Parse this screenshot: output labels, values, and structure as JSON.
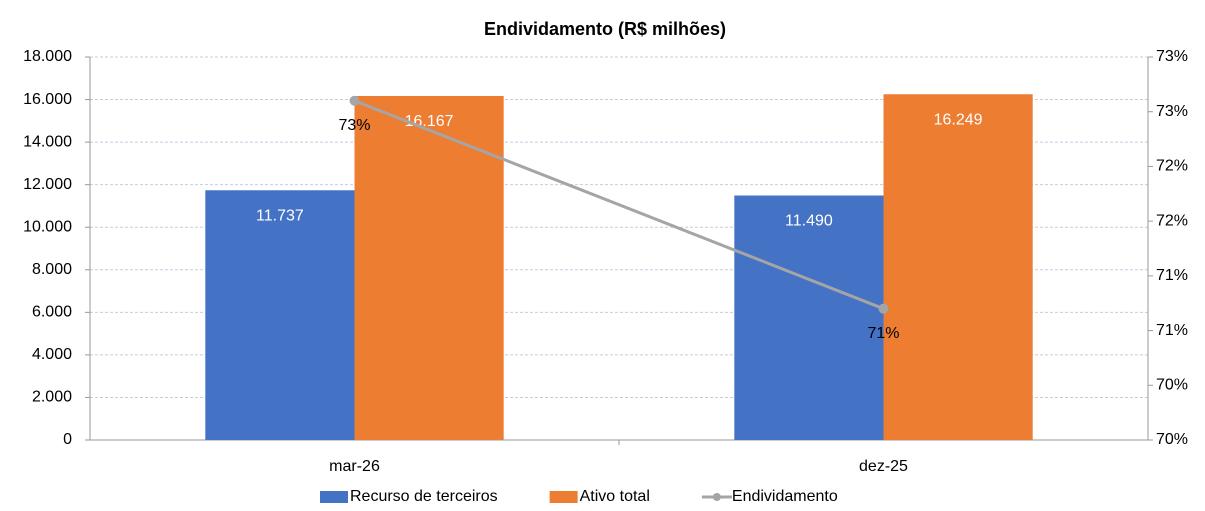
{
  "chart_data": {
    "type": "bar",
    "title": "Endividamento (R$ milhões)",
    "categories": [
      "mar-26",
      "dez-25"
    ],
    "series": [
      {
        "name": "Recurso de terceiros",
        "color": "#4472c4",
        "values": [
          11737,
          11490
        ],
        "value_labels": [
          "11.737",
          "11.490"
        ]
      },
      {
        "name": "Ativo total",
        "color": "#ed7d31",
        "values": [
          16167,
          16249
        ],
        "value_labels": [
          "16.167",
          "16.249"
        ]
      },
      {
        "name": "Endividamento",
        "type": "line",
        "axis": "y2",
        "color": "#a5a5a5",
        "values": [
          72.9,
          71.0
        ],
        "value_labels": [
          "73%",
          "71%"
        ]
      }
    ],
    "ylim": [
      0,
      18000
    ],
    "yticks": [
      0,
      {
        "value": 2000,
        "label": "2.000"
      },
      {
        "value": 4000,
        "label": "4.000"
      },
      {
        "value": 6000,
        "label": "6.000"
      },
      {
        "value": 8000,
        "label": "8.000"
      },
      {
        "value": 10000,
        "label": "10.000"
      },
      {
        "value": 12000,
        "label": "12.000"
      },
      {
        "value": 14000,
        "label": "14.000"
      },
      {
        "value": 16000,
        "label": "16.000"
      },
      {
        "value": 18000,
        "label": "18.000"
      }
    ],
    "y2lim": [
      69.8,
      73.3
    ],
    "y2ticks": [
      {
        "value": 69.8,
        "label": "70%"
      },
      {
        "value": 70.3,
        "label": "70%"
      },
      {
        "value": 70.8,
        "label": "71%"
      },
      {
        "value": 71.3,
        "label": "71%"
      },
      {
        "value": 71.8,
        "label": "72%"
      },
      {
        "value": 72.3,
        "label": "72%"
      },
      {
        "value": 72.8,
        "label": "73%"
      },
      {
        "value": 73.3,
        "label": "73%"
      }
    ],
    "grid": true,
    "legend": "bottom"
  }
}
